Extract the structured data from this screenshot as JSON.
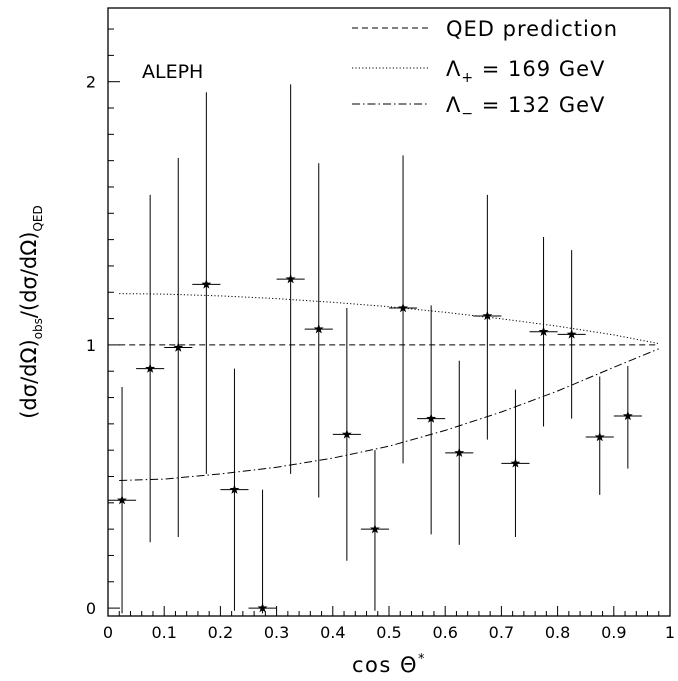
{
  "chart_data": {
    "type": "scatter",
    "experiment_label": "ALEPH",
    "xlabel": "cos Θ*",
    "ylabel": "(dσ/dΩ)obs/(dσ/dΩ)QED",
    "xlim": [
      0,
      1
    ],
    "ylim": [
      -0.03,
      2.28
    ],
    "x_ticks": [
      0,
      0.1,
      0.2,
      0.3,
      0.4,
      0.5,
      0.6,
      0.7,
      0.8,
      0.9,
      1
    ],
    "x_tick_labels": [
      "0",
      "0.1",
      "0.2",
      "0.3",
      "0.4",
      "0.5",
      "0.6",
      "0.7",
      "0.8",
      "0.9",
      "1"
    ],
    "y_ticks": [
      0,
      1,
      2
    ],
    "y_tick_labels": [
      "0",
      "1",
      "2"
    ],
    "grid": false,
    "legend_position": "top-right",
    "legend": [
      {
        "label": "QED prediction",
        "style": "dashed"
      },
      {
        "label": "Λ+ = 169 GeV",
        "style": "dotted"
      },
      {
        "label": "Λ− = 132 GeV",
        "style": "dashdot"
      }
    ],
    "series": [
      {
        "name": "ALEPH data",
        "marker": "star",
        "x_bin_halfwidth": 0.025,
        "x": [
          0.025,
          0.075,
          0.125,
          0.175,
          0.225,
          0.275,
          0.325,
          0.375,
          0.425,
          0.475,
          0.525,
          0.575,
          0.625,
          0.675,
          0.725,
          0.775,
          0.825,
          0.875,
          0.925
        ],
        "y": [
          0.41,
          0.91,
          0.99,
          1.23,
          0.45,
          0.0,
          1.25,
          1.06,
          0.66,
          0.3,
          1.14,
          0.72,
          0.59,
          1.11,
          0.55,
          1.05,
          1.04,
          0.65,
          0.73
        ],
        "y_low": [
          -0.02,
          0.25,
          0.27,
          0.51,
          -0.01,
          -0.02,
          0.51,
          0.42,
          0.18,
          -0.01,
          0.55,
          0.28,
          0.24,
          0.64,
          0.27,
          0.69,
          0.72,
          0.43,
          0.53
        ],
        "y_high": [
          0.84,
          1.57,
          1.71,
          1.96,
          0.91,
          0.45,
          1.99,
          1.69,
          1.14,
          0.6,
          1.72,
          1.15,
          0.94,
          1.57,
          0.83,
          1.41,
          1.36,
          0.88,
          0.92
        ]
      },
      {
        "name": "QED prediction",
        "style": "dashed",
        "x": [
          0.02,
          0.98
        ],
        "y": [
          1.0,
          1.0
        ]
      },
      {
        "name": "Λ+ = 169 GeV",
        "style": "dotted",
        "x": [
          0.02,
          0.1,
          0.2,
          0.3,
          0.4,
          0.5,
          0.6,
          0.7,
          0.8,
          0.9,
          0.98
        ],
        "y": [
          1.195,
          1.193,
          1.186,
          1.176,
          1.162,
          1.145,
          1.124,
          1.099,
          1.071,
          1.038,
          1.005
        ]
      },
      {
        "name": "Λ− = 132 GeV",
        "style": "dashdot",
        "x": [
          0.02,
          0.1,
          0.2,
          0.3,
          0.4,
          0.5,
          0.6,
          0.7,
          0.8,
          0.9,
          0.98
        ],
        "y": [
          0.485,
          0.49,
          0.51,
          0.535,
          0.57,
          0.615,
          0.675,
          0.745,
          0.825,
          0.915,
          0.985
        ]
      }
    ]
  }
}
